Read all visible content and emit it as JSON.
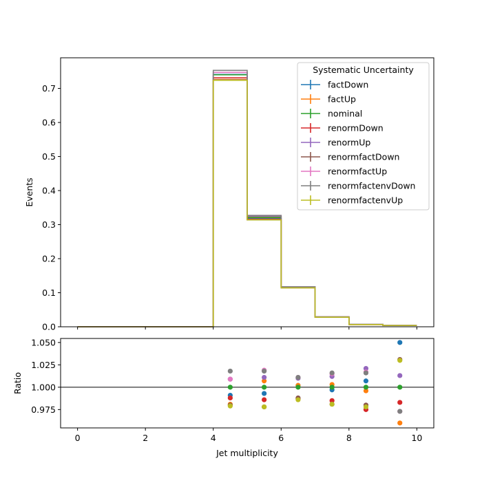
{
  "chart_data": [
    {
      "type": "step",
      "panel": "main",
      "xlabel": "",
      "ylabel": "Events",
      "xlim": [
        -0.5,
        10.5
      ],
      "ylim": [
        0,
        0.79
      ],
      "yticks": [
        "0.0",
        "0.1",
        "0.2",
        "0.3",
        "0.4",
        "0.5",
        "0.6",
        "0.7"
      ],
      "bin_edges": [
        0,
        1,
        2,
        3,
        4,
        5,
        6,
        7,
        8,
        9,
        10
      ],
      "legend": {
        "title": "Systematic Uncertainty",
        "placement": "upper right"
      },
      "series": [
        {
          "name": "factDown",
          "color": "#1f77b4",
          "values": [
            0,
            0,
            0,
            0,
            0.741,
            0.319,
            0.1175,
            0.0288,
            0.0069,
            0.0039
          ]
        },
        {
          "name": "factUp",
          "color": "#ff7f0e",
          "values": [
            0,
            0,
            0,
            0,
            0.726,
            0.324,
            0.117,
            0.0289,
            0.0066,
            0.0036
          ]
        },
        {
          "name": "nominal",
          "color": "#2ca02c",
          "values": [
            0,
            0,
            0,
            0,
            0.74,
            0.321,
            0.116,
            0.0288,
            0.0067,
            0.0037
          ]
        },
        {
          "name": "renormDown",
          "color": "#d62728",
          "values": [
            0,
            0,
            0,
            0,
            0.731,
            0.316,
            0.1145,
            0.0284,
            0.0065,
            0.0036
          ]
        },
        {
          "name": "renormUp",
          "color": "#9467bd",
          "values": [
            0,
            0,
            0,
            0,
            0.747,
            0.325,
            0.1172,
            0.0291,
            0.0068,
            0.0037
          ]
        },
        {
          "name": "renormfactDown",
          "color": "#8c564b",
          "values": [
            0,
            0,
            0,
            0,
            0.725,
            0.314,
            0.1145,
            0.0282,
            0.0065,
            0.0038
          ]
        },
        {
          "name": "renormfactUp",
          "color": "#e377c2",
          "values": [
            0,
            0,
            0,
            0,
            0.747,
            0.327,
            0.1172,
            0.0292,
            0.0068,
            0.0036
          ]
        },
        {
          "name": "renormfactenvDown",
          "color": "#7f7f7f",
          "values": [
            0,
            0,
            0,
            0,
            0.753,
            0.327,
            0.1173,
            0.0292,
            0.0068,
            0.0036
          ]
        },
        {
          "name": "renormfactenvUp",
          "color": "#bcbd22",
          "values": [
            0,
            0,
            0,
            0,
            0.724,
            0.314,
            0.1143,
            0.0282,
            0.0065,
            0.0038
          ]
        }
      ]
    },
    {
      "type": "scatter",
      "panel": "ratio",
      "xlabel": "Jet multiplicity",
      "ylabel": "Ratio",
      "xlim": [
        -0.5,
        10.5
      ],
      "ylim": [
        0.9545,
        1.0545
      ],
      "xticks": [
        "0",
        "2",
        "4",
        "6",
        "8",
        "10"
      ],
      "yticks": [
        "0.975",
        "1.000",
        "1.025",
        "1.050"
      ],
      "reference_line": 1.0,
      "x": [
        4.5,
        5.5,
        6.5,
        7.5,
        8.5,
        9.5
      ],
      "series": [
        {
          "name": "factDown",
          "color": "#1f77b4",
          "values": [
            0.991,
            0.993,
            1.002,
            0.997,
            1.007,
            1.05
          ]
        },
        {
          "name": "factUp",
          "color": "#ff7f0e",
          "values": [
            0.981,
            1.007,
            1.002,
            1.003,
            0.996,
            0.96
          ]
        },
        {
          "name": "nominal",
          "color": "#2ca02c",
          "values": [
            1.0,
            1.0,
            1.0,
            1.0,
            1.0,
            1.0
          ]
        },
        {
          "name": "renormDown",
          "color": "#d62728",
          "values": [
            0.988,
            0.986,
            0.987,
            0.985,
            0.975,
            0.983
          ]
        },
        {
          "name": "renormUp",
          "color": "#9467bd",
          "values": [
            1.009,
            1.011,
            1.01,
            1.012,
            1.021,
            1.013
          ]
        },
        {
          "name": "renormfactDown",
          "color": "#8c564b",
          "values": [
            0.98,
            0.978,
            0.988,
            0.981,
            0.98,
            1.031
          ]
        },
        {
          "name": "renormfactUp",
          "color": "#e377c2",
          "values": [
            1.009,
            1.019,
            1.011,
            1.015,
            1.017,
            0.973
          ]
        },
        {
          "name": "renormfactenvDown",
          "color": "#7f7f7f",
          "values": [
            1.018,
            1.018,
            1.011,
            1.016,
            1.016,
            0.973
          ]
        },
        {
          "name": "renormfactenvUp",
          "color": "#bcbd22",
          "values": [
            0.979,
            0.978,
            0.986,
            0.981,
            0.978,
            1.03
          ]
        }
      ]
    }
  ]
}
